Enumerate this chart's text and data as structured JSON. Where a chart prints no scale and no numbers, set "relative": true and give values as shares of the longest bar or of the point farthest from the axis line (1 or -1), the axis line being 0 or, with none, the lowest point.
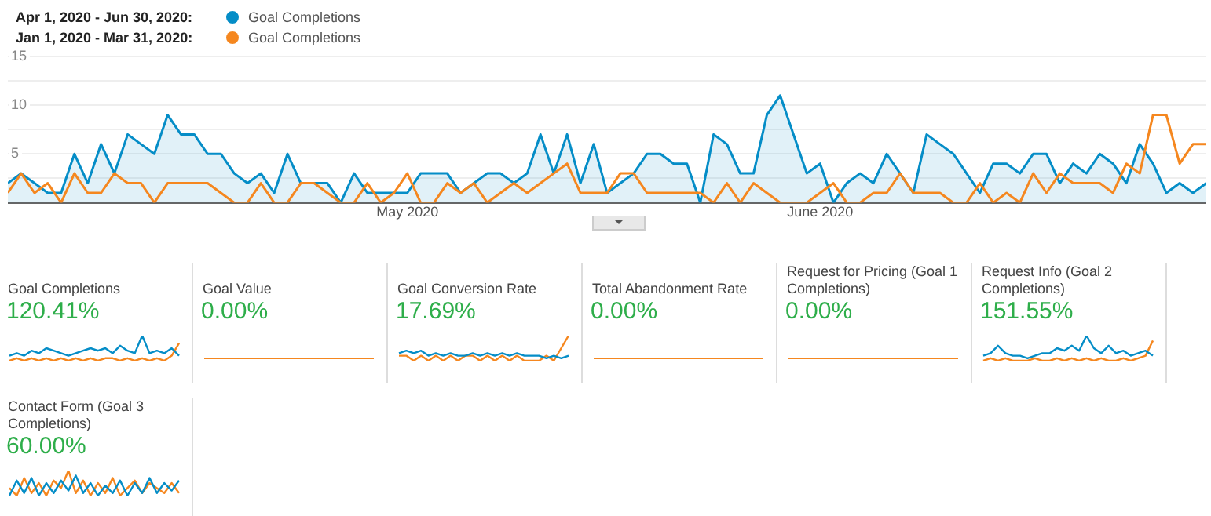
{
  "chart_data": [
    {
      "type": "line",
      "legend": "top left",
      "grid": "y",
      "annotations": [
        "Apr 1, 2020 - Jun 30, 2020:",
        "Jan 1, 2020 - Mar 31, 2020:"
      ],
      "x": [
        "2020-04-01",
        "2020-04-02",
        "2020-04-03",
        "2020-04-04",
        "2020-04-05",
        "2020-04-06",
        "2020-04-07",
        "2020-04-08",
        "2020-04-09",
        "2020-04-10",
        "2020-04-11",
        "2020-04-12",
        "2020-04-13",
        "2020-04-14",
        "2020-04-15",
        "2020-04-16",
        "2020-04-17",
        "2020-04-18",
        "2020-04-19",
        "2020-04-20",
        "2020-04-21",
        "2020-04-22",
        "2020-04-23",
        "2020-04-24",
        "2020-04-25",
        "2020-04-26",
        "2020-04-27",
        "2020-04-28",
        "2020-04-29",
        "2020-04-30",
        "2020-05-01",
        "2020-05-02",
        "2020-05-03",
        "2020-05-04",
        "2020-05-05",
        "2020-05-06",
        "2020-05-07",
        "2020-05-08",
        "2020-05-09",
        "2020-05-10",
        "2020-05-11",
        "2020-05-12",
        "2020-05-13",
        "2020-05-14",
        "2020-05-15",
        "2020-05-16",
        "2020-05-17",
        "2020-05-18",
        "2020-05-19",
        "2020-05-20",
        "2020-05-21",
        "2020-05-22",
        "2020-05-23",
        "2020-05-24",
        "2020-05-25",
        "2020-05-26",
        "2020-05-27",
        "2020-05-28",
        "2020-05-29",
        "2020-05-30",
        "2020-05-31",
        "2020-06-01",
        "2020-06-02",
        "2020-06-03",
        "2020-06-04",
        "2020-06-05",
        "2020-06-06",
        "2020-06-07",
        "2020-06-08",
        "2020-06-09",
        "2020-06-10",
        "2020-06-11",
        "2020-06-12",
        "2020-06-13",
        "2020-06-14",
        "2020-06-15",
        "2020-06-16",
        "2020-06-17",
        "2020-06-18",
        "2020-06-19",
        "2020-06-20",
        "2020-06-21",
        "2020-06-22",
        "2020-06-23",
        "2020-06-24",
        "2020-06-25",
        "2020-06-26",
        "2020-06-27",
        "2020-06-28",
        "2020-06-29",
        "2020-06-30"
      ],
      "xlim": [
        "2020-04-01",
        "2020-06-30"
      ],
      "xticks": [
        {
          "value": "2020-05-01",
          "label": "May 2020"
        },
        {
          "value": "2020-06-01",
          "label": "June 2020"
        }
      ],
      "ylim": [
        0,
        15
      ],
      "yticks": [
        {
          "value": 0,
          "label": null
        },
        {
          "value": 2.5,
          "label": null
        },
        5,
        {
          "value": 7.5,
          "label": null
        },
        10,
        {
          "value": 12.5,
          "label": null
        },
        15
      ],
      "series": [
        {
          "name": "Goal Completions",
          "type": "area",
          "color": "#058dc7",
          "values": [
            2,
            3,
            2,
            1,
            1,
            5,
            2,
            6,
            3,
            7,
            6,
            5,
            9,
            7,
            7,
            5,
            5,
            3,
            2,
            3,
            1,
            5,
            2,
            2,
            2,
            0,
            3,
            1,
            1,
            1,
            1,
            3,
            3,
            3,
            1,
            2,
            3,
            3,
            2,
            3,
            7,
            3,
            7,
            2,
            6,
            1,
            2,
            3,
            5,
            5,
            4,
            4,
            0,
            7,
            6,
            3,
            3,
            9,
            11,
            7,
            3,
            4,
            0,
            2,
            3,
            2,
            5,
            3,
            1,
            7,
            6,
            5,
            3,
            1,
            4,
            4,
            3,
            5,
            5,
            2,
            4,
            3,
            5,
            4,
            2,
            6,
            4,
            1,
            2,
            1,
            2
          ]
        },
        {
          "name": "Goal Completions",
          "color": "#f5871f",
          "values": [
            1,
            3,
            1,
            2,
            0,
            3,
            1,
            1,
            3,
            2,
            2,
            0,
            2,
            2,
            2,
            2,
            1,
            0,
            0,
            2,
            0,
            0,
            2,
            2,
            1,
            0,
            0,
            2,
            0,
            1,
            3,
            0,
            0,
            2,
            1,
            2,
            0,
            1,
            2,
            1,
            2,
            3,
            4,
            1,
            1,
            1,
            3,
            3,
            1,
            1,
            1,
            1,
            1,
            0,
            2,
            0,
            2,
            1,
            0,
            0,
            0,
            1,
            2,
            0,
            0,
            1,
            1,
            3,
            1,
            1,
            1,
            0,
            0,
            2,
            0,
            1,
            0,
            3,
            1,
            3,
            2,
            2,
            2,
            1,
            4,
            3,
            9,
            9,
            4,
            6,
            6
          ]
        }
      ]
    },
    {
      "type": "line",
      "relative": true,
      "title": "Goal Completions",
      "annotations": [
        "120.41%"
      ],
      "categories": [
        null,
        null,
        null,
        null,
        null,
        null,
        null,
        null,
        null,
        null,
        null,
        null,
        null,
        null,
        null,
        null,
        null,
        null,
        null,
        null,
        null,
        null,
        null,
        null
      ],
      "series": [
        {
          "color": "#058dc7",
          "values": [
            0.2,
            0.3,
            0.2,
            0.4,
            0.3,
            0.5,
            0.4,
            0.3,
            0.2,
            0.3,
            0.4,
            0.5,
            0.4,
            0.5,
            0.3,
            0.6,
            0.4,
            0.3,
            1,
            0.3,
            0.4,
            0.3,
            0.5,
            0.2
          ]
        },
        {
          "color": "#f5871f",
          "values": [
            0,
            0.1,
            0,
            0.1,
            0,
            0.1,
            0,
            0.1,
            0,
            0.1,
            0,
            0.1,
            0,
            0.1,
            0.1,
            0,
            0.1,
            0,
            0.1,
            0,
            0.1,
            0,
            0.2,
            0.7
          ]
        }
      ]
    },
    {
      "type": "other",
      "title": "Goal Value",
      "annotations": [
        "0.00%"
      ]
    },
    {
      "type": "line",
      "relative": true,
      "title": "Goal Conversion Rate",
      "annotations": [
        "17.69%"
      ],
      "categories": [
        null,
        null,
        null,
        null,
        null,
        null,
        null,
        null,
        null,
        null,
        null,
        null,
        null,
        null,
        null,
        null,
        null,
        null,
        null,
        null,
        null,
        null,
        null,
        null
      ],
      "series": [
        {
          "color": "#058dc7",
          "values": [
            0.3,
            0.4,
            0.3,
            0.4,
            0.2,
            0.3,
            0.2,
            0.3,
            0.2,
            0.2,
            0.3,
            0.2,
            0.3,
            0.2,
            0.3,
            0.2,
            0.3,
            0.2,
            0.2,
            0.2,
            0.1,
            0.2,
            0.1,
            0.2
          ]
        },
        {
          "color": "#f5871f",
          "values": [
            0.2,
            0.2,
            0,
            0.2,
            0,
            0.2,
            0,
            0.2,
            0,
            0.2,
            0.2,
            0,
            0.2,
            0,
            0.2,
            0,
            0.2,
            0,
            0,
            0,
            0.2,
            0,
            0.5,
            1
          ]
        }
      ]
    },
    {
      "type": "other",
      "title": "Total Abandonment Rate",
      "annotations": [
        "0.00%"
      ]
    },
    {
      "type": "other",
      "title": "Request for Pricing (Goal 1 Completions)",
      "annotations": [
        "0.00%"
      ]
    },
    {
      "type": "line",
      "relative": true,
      "title": "Request Info (Goal 2 Completions)",
      "annotations": [
        "151.55%"
      ],
      "categories": [
        null,
        null,
        null,
        null,
        null,
        null,
        null,
        null,
        null,
        null,
        null,
        null,
        null,
        null,
        null,
        null,
        null,
        null,
        null,
        null,
        null,
        null,
        null,
        null
      ],
      "series": [
        {
          "color": "#058dc7",
          "values": [
            0.2,
            0.3,
            0.6,
            0.3,
            0.2,
            0.2,
            0.1,
            0.2,
            0.3,
            0.3,
            0.5,
            0.4,
            0.6,
            0.4,
            1,
            0.5,
            0.3,
            0.6,
            0.3,
            0.4,
            0.2,
            0.3,
            0.4,
            0.2
          ]
        },
        {
          "color": "#f5871f",
          "values": [
            0,
            0.1,
            0,
            0.1,
            0,
            0,
            0,
            0.1,
            0,
            0,
            0.1,
            0,
            0.1,
            0,
            0.1,
            0,
            0.1,
            0,
            0,
            0.1,
            0,
            0.1,
            0.2,
            0.8
          ]
        }
      ]
    },
    {
      "type": "line",
      "relative": true,
      "title": "Contact Form (Goal 3 Completions)",
      "annotations": [
        "60.00%"
      ],
      "categories": [
        null,
        null,
        null,
        null,
        null,
        null,
        null,
        null,
        null,
        null,
        null,
        null,
        null,
        null,
        null,
        null,
        null,
        null,
        null,
        null,
        null,
        null,
        null,
        null
      ],
      "series": [
        {
          "color": "#058dc7",
          "values": [
            0,
            0.6,
            0.1,
            0.7,
            0,
            0.5,
            0.1,
            0.6,
            0.2,
            0.8,
            0.1,
            0.5,
            0,
            0.4,
            0.1,
            0.6,
            0,
            0.5,
            0.1,
            0.7,
            0.1,
            0.5,
            0.2,
            0.6
          ]
        },
        {
          "color": "#f5871f",
          "values": [
            0.3,
            0,
            0.7,
            0.1,
            0.5,
            0,
            0.6,
            0.3,
            1,
            0.1,
            0.6,
            0,
            0.5,
            0.1,
            0.7,
            0,
            0.3,
            0.6,
            0.1,
            0.5,
            0.3,
            0.1,
            0.5,
            0.1
          ]
        }
      ]
    }
  ]
}
